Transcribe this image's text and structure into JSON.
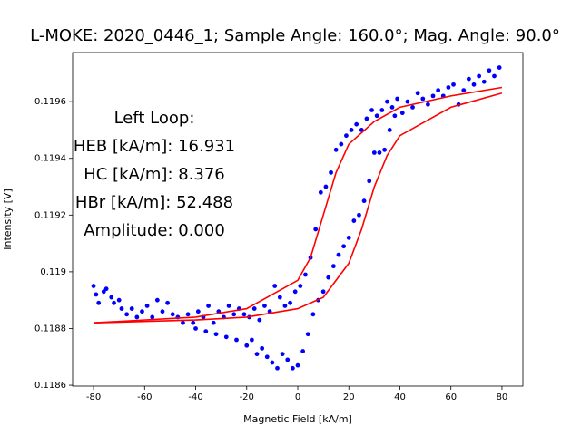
{
  "chart_data": {
    "type": "scatter",
    "title": "L-MOKE: 2020_0446_1; Sample Angle: 160.0°; Mag. Angle: 90.0°",
    "x_label": "Magnetic Field [kA/m]",
    "y_label": "Intensity [V]",
    "annotations": [
      "Left Loop:",
      "HEB [kA/m]: 16.931",
      "HC [kA/m]: 8.376",
      "HBr [kA/m]: 52.488",
      "Amplitude: 0.000"
    ],
    "xlim": [
      -88.2,
      88.2
    ],
    "ylim": [
      0.118597,
      0.119773
    ],
    "xticks": [
      -80,
      -60,
      -40,
      -20,
      0,
      20,
      40,
      60,
      80
    ],
    "yticks": [
      0.1186,
      0.1188,
      0.119,
      0.1192,
      0.1194,
      0.1196
    ],
    "grid": false,
    "series": [
      {
        "style": "points",
        "color": "#0000ff",
        "x": [
          -80,
          -79,
          -78,
          -76,
          -75,
          -73,
          -72,
          -70,
          -69,
          -67,
          -65,
          -63,
          -61,
          -59,
          -57,
          -55,
          -53,
          -51,
          -49,
          -47,
          -45,
          -43,
          -41,
          -39,
          -37,
          -35,
          -33,
          -31,
          -29,
          -27,
          -25,
          -23,
          -21,
          -19,
          -17,
          -15,
          -13,
          -11,
          -9,
          -7,
          -5,
          -3,
          -1,
          1,
          3,
          5,
          7,
          9,
          11,
          13,
          15,
          17,
          19,
          21,
          23,
          25,
          27,
          29,
          31,
          33,
          35,
          37,
          39,
          41,
          43,
          45,
          47,
          49,
          51,
          53,
          55,
          57,
          59,
          61,
          63,
          65,
          67,
          69,
          71,
          73,
          75,
          77,
          79,
          -40,
          -36,
          -32,
          -28,
          -24,
          -20,
          -18,
          -16,
          -14,
          -12,
          -10,
          -8,
          -6,
          -4,
          -2,
          0,
          2,
          4,
          6,
          8,
          10,
          12,
          14,
          16,
          18,
          20,
          22,
          24,
          26,
          28,
          30,
          32,
          34,
          36,
          38
        ],
        "values": [
          0.11895,
          0.11892,
          0.11889,
          0.11893,
          0.11894,
          0.11891,
          0.11889,
          0.1189,
          0.11887,
          0.11885,
          0.11887,
          0.11884,
          0.11886,
          0.11888,
          0.11884,
          0.1189,
          0.11886,
          0.11889,
          0.11885,
          0.11884,
          0.11882,
          0.11885,
          0.11882,
          0.11886,
          0.11884,
          0.11888,
          0.11882,
          0.11886,
          0.11884,
          0.11888,
          0.11885,
          0.11887,
          0.11885,
          0.11884,
          0.11887,
          0.11883,
          0.11888,
          0.11886,
          0.11895,
          0.11891,
          0.11888,
          0.11889,
          0.11893,
          0.11895,
          0.11899,
          0.11905,
          0.11915,
          0.11928,
          0.1193,
          0.11935,
          0.11943,
          0.11945,
          0.11948,
          0.1195,
          0.11952,
          0.1195,
          0.11954,
          0.11957,
          0.11955,
          0.11957,
          0.1196,
          0.11958,
          0.11961,
          0.11956,
          0.1196,
          0.11958,
          0.11963,
          0.11961,
          0.11959,
          0.11962,
          0.11964,
          0.11962,
          0.11965,
          0.11966,
          0.11959,
          0.11964,
          0.11968,
          0.11966,
          0.11969,
          0.11967,
          0.11971,
          0.11969,
          0.11972,
          0.1188,
          0.11879,
          0.11878,
          0.11877,
          0.11876,
          0.11874,
          0.11876,
          0.11871,
          0.11873,
          0.1187,
          0.11868,
          0.11866,
          0.11871,
          0.11869,
          0.11866,
          0.11867,
          0.11872,
          0.11878,
          0.11885,
          0.1189,
          0.11893,
          0.11898,
          0.11902,
          0.11906,
          0.11909,
          0.11912,
          0.11918,
          0.1192,
          0.11925,
          0.11932,
          0.11942,
          0.11942,
          0.11943,
          0.1195,
          0.11955
        ]
      },
      {
        "style": "line",
        "color": "#ff0000",
        "x": [
          -80,
          -40,
          -20,
          0,
          5,
          10,
          15,
          20,
          30,
          40,
          60,
          80
        ],
        "values": [
          0.11882,
          0.11884,
          0.11887,
          0.11897,
          0.11905,
          0.1192,
          0.11935,
          0.11945,
          0.11953,
          0.11958,
          0.11962,
          0.11965
        ]
      },
      {
        "style": "line",
        "color": "#ff0000",
        "x": [
          -80,
          -40,
          -20,
          0,
          10,
          20,
          25,
          30,
          35,
          40,
          60,
          80
        ],
        "values": [
          0.11882,
          0.11883,
          0.11884,
          0.11887,
          0.11891,
          0.11903,
          0.11915,
          0.1193,
          0.11941,
          0.11948,
          0.11958,
          0.11963
        ]
      }
    ]
  }
}
